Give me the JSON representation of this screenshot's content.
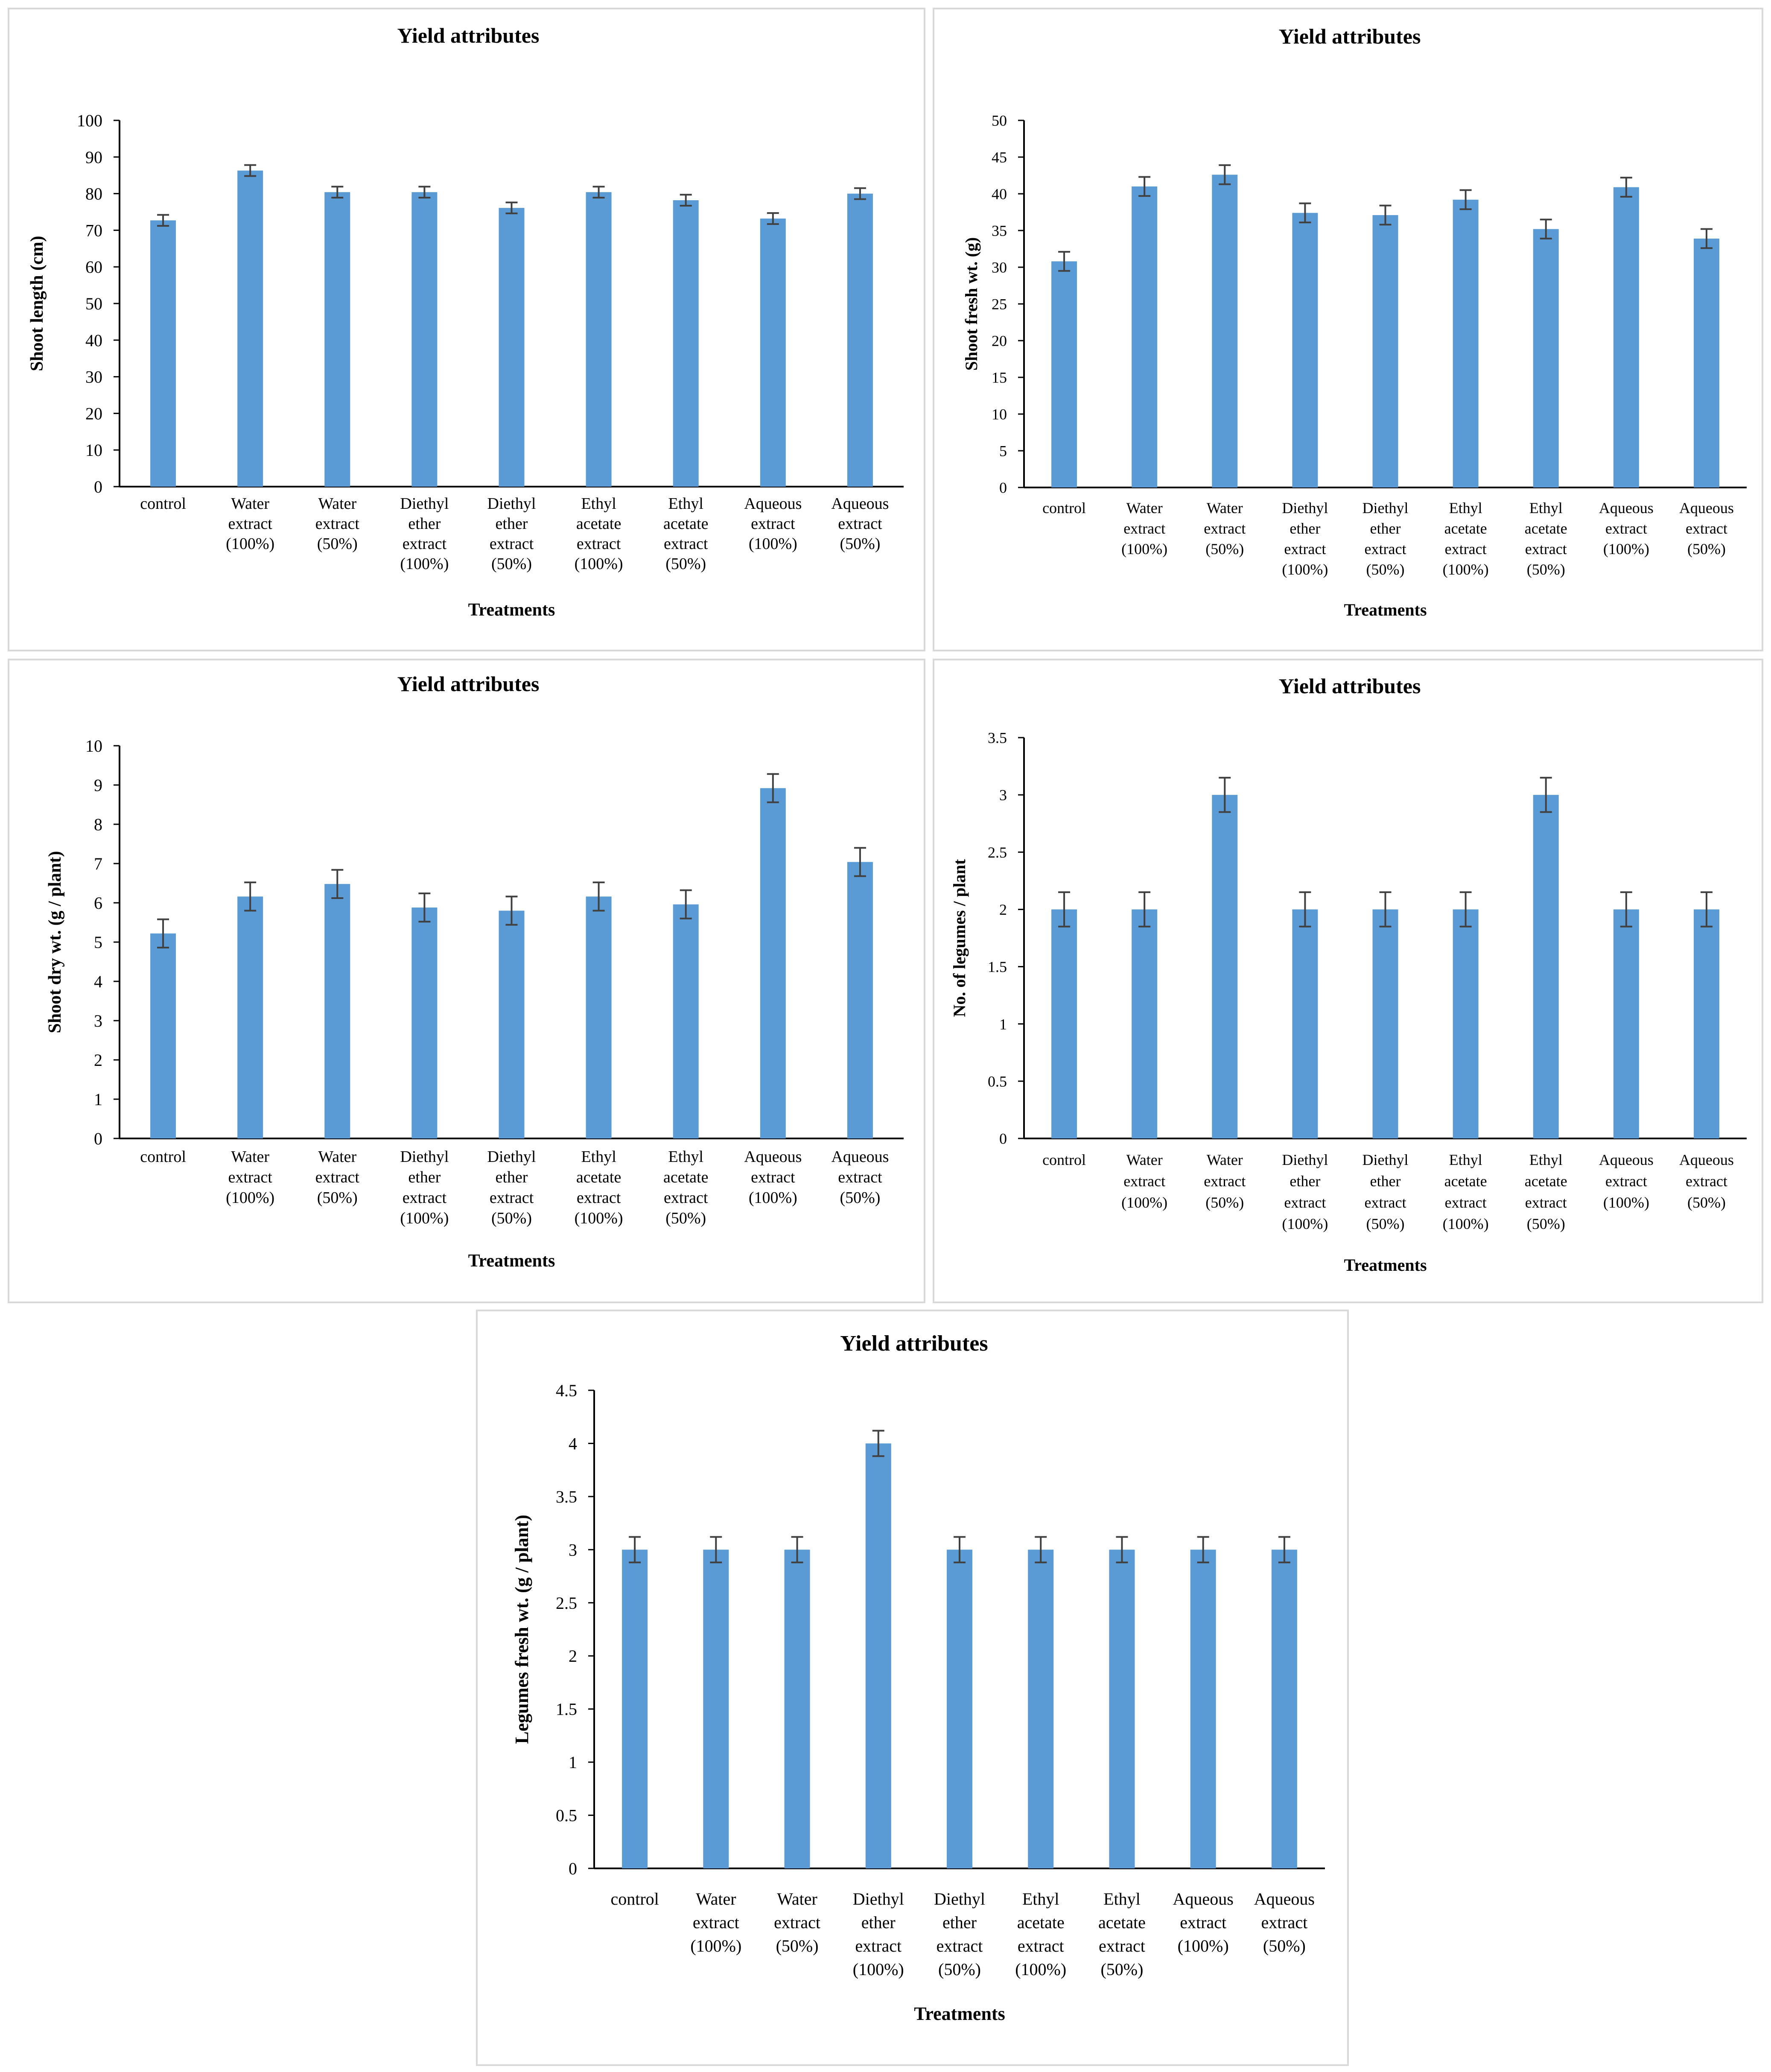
{
  "colors": {
    "bar": "#5b9bd5",
    "error_bar": "#404040",
    "axis": "#000000",
    "panel_border": "#d9d9d9"
  },
  "chart_data": [
    {
      "id": "shoot-length",
      "type": "bar",
      "title": "Yield attributes",
      "xlabel": "Treatments",
      "ylabel": "Shoot length (cm)",
      "ylim": [
        0,
        100
      ],
      "yticks": [
        "0",
        "10",
        "20",
        "30",
        "40",
        "50",
        "60",
        "70",
        "80",
        "90",
        "100"
      ],
      "categories": [
        [
          "control"
        ],
        [
          "Water",
          "extract",
          "(100%)"
        ],
        [
          "Water",
          "extract",
          "(50%)"
        ],
        [
          "Diethyl",
          "ether",
          "extract",
          "(100%)"
        ],
        [
          "Diethyl",
          "ether",
          "extract",
          "(50%)"
        ],
        [
          "Ethyl",
          "acetate",
          "extract",
          "(100%)"
        ],
        [
          "Ethyl",
          "acetate",
          "extract",
          "(50%)"
        ],
        [
          "Aqueous",
          "extract",
          "(100%)"
        ],
        [
          "Aqueous",
          "extract",
          "(50%)"
        ]
      ],
      "values": [
        72.7,
        86.3,
        80.4,
        80.4,
        76.1,
        80.4,
        78.2,
        73.2,
        80.0
      ],
      "errors": [
        1.5,
        1.5,
        1.5,
        1.5,
        1.5,
        1.5,
        1.5,
        1.5,
        1.5
      ]
    },
    {
      "id": "shoot-fresh-wt",
      "type": "bar",
      "title": "Yield attributes",
      "xlabel": "Treatments",
      "ylabel": "Shoot fresh wt. (g)",
      "ylim": [
        0,
        50
      ],
      "yticks": [
        "0",
        "5",
        "10",
        "15",
        "20",
        "25",
        "30",
        "35",
        "40",
        "45",
        "50"
      ],
      "categories": [
        [
          "control"
        ],
        [
          "Water",
          "extract",
          "(100%)"
        ],
        [
          "Water",
          "extract",
          "(50%)"
        ],
        [
          "Diethyl",
          "ether",
          "extract",
          "(100%)"
        ],
        [
          "Diethyl",
          "ether",
          "extract",
          "(50%)"
        ],
        [
          "Ethyl",
          "acetate",
          "extract",
          "(100%)"
        ],
        [
          "Ethyl",
          "acetate",
          "extract",
          "(50%)"
        ],
        [
          "Aqueous",
          "extract",
          "(100%)"
        ],
        [
          "Aqueous",
          "extract",
          "(50%)"
        ]
      ],
      "values": [
        30.8,
        41.0,
        42.6,
        37.4,
        37.1,
        39.2,
        35.2,
        40.9,
        33.9
      ],
      "errors": [
        1.3,
        1.3,
        1.3,
        1.3,
        1.3,
        1.3,
        1.3,
        1.3,
        1.3
      ]
    },
    {
      "id": "shoot-dry-wt",
      "type": "bar",
      "title": "Yield attributes",
      "xlabel": "Treatments",
      "ylabel": "Shoot dry wt. (g / plant)",
      "ylim": [
        0,
        10
      ],
      "yticks": [
        "0",
        "1",
        "2",
        "3",
        "4",
        "5",
        "6",
        "7",
        "8",
        "9",
        "10"
      ],
      "categories": [
        [
          "control"
        ],
        [
          "Water",
          "extract",
          "(100%)"
        ],
        [
          "Water",
          "extract",
          "(50%)"
        ],
        [
          "Diethyl",
          "ether",
          "extract",
          "(100%)"
        ],
        [
          "Diethyl",
          "ether",
          "extract",
          "(50%)"
        ],
        [
          "Ethyl",
          "acetate",
          "extract",
          "(100%)"
        ],
        [
          "Ethyl",
          "acetate",
          "extract",
          "(50%)"
        ],
        [
          "Aqueous",
          "extract",
          "(100%)"
        ],
        [
          "Aqueous",
          "extract",
          "(50%)"
        ]
      ],
      "values": [
        5.22,
        6.16,
        6.48,
        5.88,
        5.8,
        6.16,
        5.96,
        8.92,
        7.04
      ],
      "errors": [
        0.36,
        0.36,
        0.36,
        0.36,
        0.36,
        0.36,
        0.36,
        0.36,
        0.36
      ]
    },
    {
      "id": "no-of-legumes",
      "type": "bar",
      "title": "Yield attributes",
      "xlabel": "Treatments",
      "ylabel": "No. of legumes / plant",
      "ylim": [
        0,
        3.5
      ],
      "yticks": [
        "0",
        "0.5",
        "1",
        "1.5",
        "2",
        "2.5",
        "3",
        "3.5"
      ],
      "categories": [
        [
          "control"
        ],
        [
          "Water",
          "extract",
          "(100%)"
        ],
        [
          "Water",
          "extract",
          "(50%)"
        ],
        [
          "Diethyl",
          "ether",
          "extract",
          "(100%)"
        ],
        [
          "Diethyl",
          "ether",
          "extract",
          "(50%)"
        ],
        [
          "Ethyl",
          "acetate",
          "extract",
          "(100%)"
        ],
        [
          "Ethyl",
          "acetate",
          "extract",
          "(50%)"
        ],
        [
          "Aqueous",
          "extract",
          "(100%)"
        ],
        [
          "Aqueous",
          "extract",
          "(50%)"
        ]
      ],
      "values": [
        2,
        2,
        3,
        2,
        2,
        2,
        3,
        2,
        2
      ],
      "errors": [
        0.15,
        0.15,
        0.15,
        0.15,
        0.15,
        0.15,
        0.15,
        0.15,
        0.15
      ]
    },
    {
      "id": "legumes-fresh-wt",
      "type": "bar",
      "title": "Yield attributes",
      "xlabel": "Treatments",
      "ylabel": "Legumes fresh wt. (g / plant)",
      "ylim": [
        0,
        4.5
      ],
      "yticks": [
        "0",
        "0.5",
        "1",
        "1.5",
        "2",
        "2.5",
        "3",
        "3.5",
        "4",
        "4.5"
      ],
      "categories": [
        [
          "control"
        ],
        [
          "Water",
          "extract",
          "(100%)"
        ],
        [
          "Water",
          "extract",
          "(50%)"
        ],
        [
          "Diethyl",
          "ether",
          "extract",
          "(100%)"
        ],
        [
          "Diethyl",
          "ether",
          "extract",
          "(50%)"
        ],
        [
          "Ethyl",
          "acetate",
          "extract",
          "(100%)"
        ],
        [
          "Ethyl",
          "acetate",
          "extract",
          "(50%)"
        ],
        [
          "Aqueous",
          "extract",
          "(100%)"
        ],
        [
          "Aqueous",
          "extract",
          "(50%)"
        ]
      ],
      "values": [
        3,
        3,
        3,
        4,
        3,
        3,
        3,
        3,
        3
      ],
      "errors": [
        0.12,
        0.12,
        0.12,
        0.12,
        0.12,
        0.12,
        0.12,
        0.12,
        0.12
      ]
    }
  ]
}
